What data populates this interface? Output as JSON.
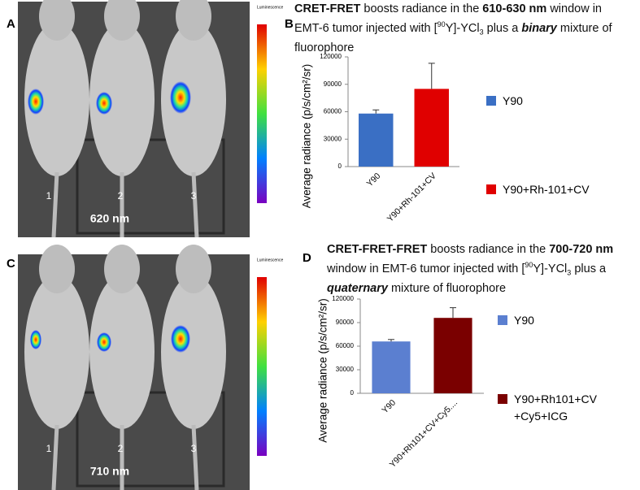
{
  "panel_labels": [
    "A",
    "B",
    "C",
    "D"
  ],
  "images": [
    {
      "wavelength": "620 nm",
      "mice": [
        "1",
        "2",
        "3"
      ],
      "colorbar_title": "Luminescence"
    },
    {
      "wavelength": "710 nm",
      "mice": [
        "1",
        "2",
        "3"
      ],
      "colorbar_title": "Luminescence"
    }
  ],
  "chart_data": [
    {
      "type": "bar",
      "title": [
        {
          "text": "CRET-FRET",
          "bold": true
        },
        {
          "text": " boosts radiance in the "
        },
        {
          "text": "610-630 nm",
          "bold": true
        },
        {
          "text": " window  in EMT-6 tumor injected with ["
        },
        {
          "text": "90",
          "sup": true
        },
        {
          "text": "Y]-YCl"
        },
        {
          "text": "3",
          "sub": true
        },
        {
          "text": " plus a "
        },
        {
          "text": "binary",
          "bold": true,
          "italic": true
        },
        {
          "text": " mixture of fluorophore"
        }
      ],
      "y_label": "Average radiance (p/s/cm²/sr)",
      "categories": [
        "Y90",
        "Y90+Rh-101+CV"
      ],
      "series": [
        {
          "name": "Y90",
          "color": "#3a6fc4",
          "values": [
            58000,
            null
          ],
          "errors": [
            4000,
            null
          ]
        },
        {
          "name": "Y90+Rh-101+CV",
          "color": "#e00000",
          "values": [
            null,
            85000
          ],
          "errors": [
            null,
            28000
          ]
        }
      ],
      "ylim": [
        0,
        120000
      ],
      "yticks": [
        0,
        30000,
        60000,
        90000,
        120000
      ]
    },
    {
      "type": "bar",
      "title": [
        {
          "text": "CRET-FRET-FRET",
          "bold": true
        },
        {
          "text": " boosts radiance in the "
        },
        {
          "text": "700-720 nm",
          "bold": true
        },
        {
          "text": " window in EMT-6 tumor injected with ["
        },
        {
          "text": "90",
          "sup": true
        },
        {
          "text": "Y]-YCl"
        },
        {
          "text": "3",
          "sub": true
        },
        {
          "text": " plus a "
        },
        {
          "text": "quaternary",
          "bold": true,
          "italic": true
        },
        {
          "text": " mixture of fluorophore"
        }
      ],
      "y_label": "Average radiance (p/s/cm²/sr)",
      "categories": [
        "Y90",
        "Y90+Rh101+CV+Cy5...."
      ],
      "series": [
        {
          "name": "Y90",
          "color": "#5b7fd0",
          "values": [
            66000,
            null
          ],
          "errors": [
            2500,
            null
          ]
        },
        {
          "name": "Y90+Rh101+CV+Cy5+ICG",
          "color": "#7a0000",
          "values": [
            null,
            96000
          ],
          "errors": [
            null,
            13000
          ]
        }
      ],
      "ylim": [
        0,
        120000
      ],
      "yticks": [
        0,
        30000,
        60000,
        90000,
        120000
      ]
    }
  ]
}
